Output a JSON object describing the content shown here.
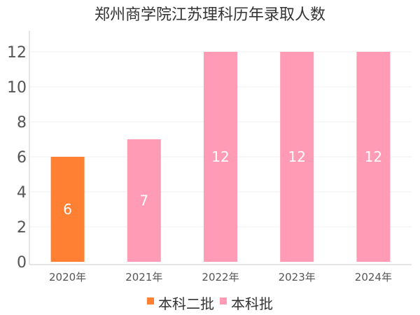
{
  "chart_data": {
    "type": "bar",
    "title": "郑州商学院江苏理科历年录取人数",
    "xlabel": "",
    "ylabel": "",
    "categories": [
      "2020年",
      "2021年",
      "2022年",
      "2023年",
      "2024年"
    ],
    "series": [
      {
        "name": "本科二批",
        "color": "#ff7f33",
        "values": [
          6,
          null,
          null,
          null,
          null
        ]
      },
      {
        "name": "本科批",
        "color": "#ff9bb4",
        "values": [
          null,
          7,
          12,
          12,
          12
        ]
      }
    ],
    "yticks": [
      0,
      2,
      4,
      6,
      8,
      10,
      12
    ],
    "ylim": [
      0,
      12
    ],
    "grid": true,
    "data_labels": true,
    "legend_position": "bottom"
  }
}
